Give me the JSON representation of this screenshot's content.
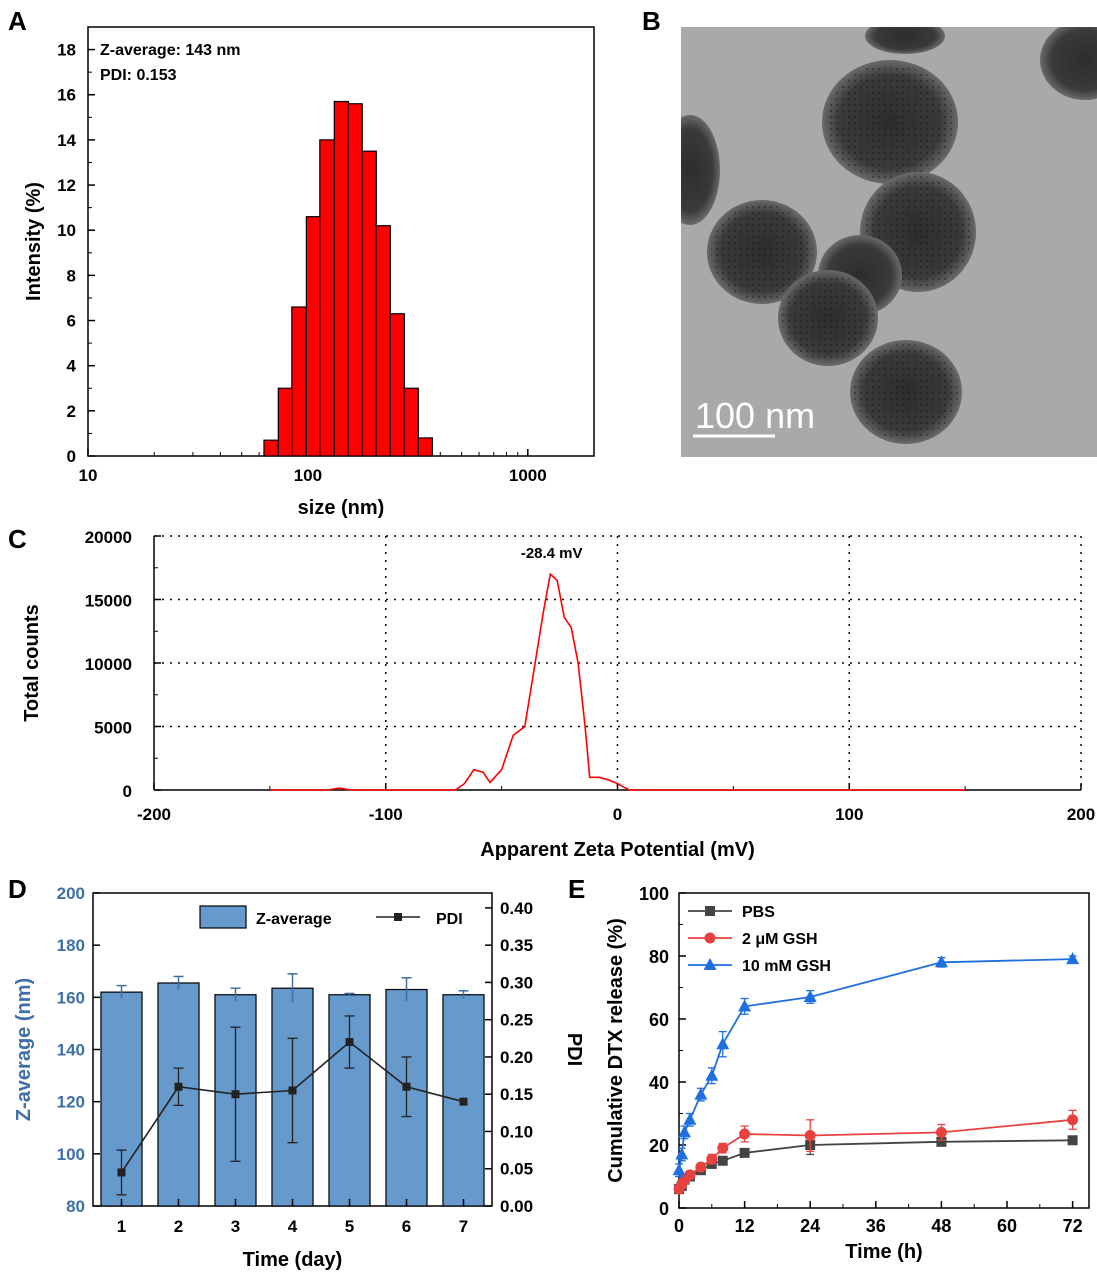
{
  "panels": {
    "a": "A",
    "b": "B",
    "c": "C",
    "d": "D",
    "e": "E"
  },
  "tem": {
    "scale_bar_label": "100 nm"
  },
  "chart_data": [
    {
      "panel": "A",
      "type": "bar",
      "xlabel": "size (nm)",
      "ylabel": "Intensity (%)",
      "xscale": "log",
      "xlim": [
        10,
        2000
      ],
      "ylim": [
        0,
        19
      ],
      "xticks": [
        10,
        100,
        1000
      ],
      "yticks": [
        0,
        2,
        4,
        6,
        8,
        10,
        12,
        14,
        16,
        18
      ],
      "annotations": [
        "Z-average: 143 nm",
        "PDI: 0.153"
      ],
      "bins": [
        {
          "size": 68,
          "value": 0.7
        },
        {
          "size": 79,
          "value": 3.0
        },
        {
          "size": 91,
          "value": 6.6
        },
        {
          "size": 106,
          "value": 10.6
        },
        {
          "size": 122,
          "value": 14.0
        },
        {
          "size": 142,
          "value": 15.7
        },
        {
          "size": 164,
          "value": 15.6
        },
        {
          "size": 190,
          "value": 13.5
        },
        {
          "size": 220,
          "value": 10.2
        },
        {
          "size": 255,
          "value": 6.3
        },
        {
          "size": 295,
          "value": 3.0
        },
        {
          "size": 342,
          "value": 0.8
        }
      ],
      "color": "#ff0000"
    },
    {
      "panel": "C",
      "type": "line",
      "xlabel": "Apparent Zeta Potential (mV)",
      "ylabel": "Total counts",
      "xlim": [
        -200,
        200
      ],
      "ylim": [
        0,
        20000
      ],
      "xticks": [
        -200,
        -100,
        0,
        100,
        200
      ],
      "yticks": [
        0,
        5000,
        10000,
        15000,
        20000
      ],
      "grid": true,
      "annotation": "-28.4 mV",
      "color": "#ff0000",
      "x": [
        -150,
        -125,
        -120,
        -115,
        -100,
        -70,
        -66,
        -62,
        -58,
        -55,
        -50,
        -45,
        -40,
        -36,
        -32,
        -29,
        -26,
        -23,
        -20,
        -17,
        -14,
        -12,
        -8,
        -4,
        0,
        5,
        10,
        50,
        100,
        150
      ],
      "y": [
        0,
        0,
        150,
        0,
        0,
        0,
        500,
        1600,
        1400,
        600,
        1600,
        4300,
        5000,
        9500,
        14000,
        17000,
        16500,
        13600,
        12800,
        10000,
        5000,
        1000,
        1000,
        800,
        500,
        0,
        0,
        0,
        0,
        0
      ]
    },
    {
      "panel": "D",
      "type": "bar+line",
      "xlabel": "Time (day)",
      "ylabel": "Z-average (nm)",
      "y2label": "PDI",
      "categories": [
        "1",
        "2",
        "3",
        "4",
        "5",
        "6",
        "7"
      ],
      "ylim": [
        80,
        200
      ],
      "y2lim": [
        0,
        0.42
      ],
      "yticks": [
        80,
        100,
        120,
        140,
        160,
        180,
        200
      ],
      "y2ticks": [
        0.0,
        0.05,
        0.1,
        0.15,
        0.2,
        0.25,
        0.3,
        0.35,
        0.4
      ],
      "legend_position": "top",
      "series": [
        {
          "name": "Z-average",
          "values": [
            162,
            165.5,
            161,
            163.5,
            161,
            163,
            161
          ],
          "errors": [
            2.5,
            2.5,
            2.5,
            5.5,
            0.5,
            4.5,
            1.5
          ],
          "color": "#6699cc"
        },
        {
          "name": "PDI",
          "values": [
            0.045,
            0.16,
            0.15,
            0.155,
            0.22,
            0.16,
            0.14
          ],
          "errors": [
            0.03,
            0.025,
            0.09,
            0.07,
            0.035,
            0.04,
            0.0
          ],
          "color": "#222222"
        }
      ]
    },
    {
      "panel": "E",
      "type": "line",
      "xlabel": "Time (h)",
      "ylabel": "Cumulative DTX release (%)",
      "xlim": [
        0,
        75
      ],
      "ylim": [
        0,
        100
      ],
      "xticks": [
        0,
        12,
        24,
        36,
        48,
        60,
        72
      ],
      "yticks": [
        0,
        20,
        40,
        60,
        80,
        100
      ],
      "legend_position": "top-left",
      "x": [
        0,
        0.5,
        1,
        2,
        4,
        6,
        8,
        12,
        24,
        48,
        72
      ],
      "series": [
        {
          "name": "PBS",
          "values": [
            6,
            7,
            9,
            10,
            12,
            14,
            15,
            17.5,
            20,
            21,
            21.5
          ],
          "errors": [
            1,
            1,
            1,
            1,
            1,
            1,
            1,
            1,
            3,
            1,
            1
          ],
          "color": "#444444",
          "marker": "square"
        },
        {
          "name": "2 μM GSH",
          "values": [
            6,
            7.5,
            9,
            10.5,
            13,
            15.5,
            19,
            23.5,
            23,
            24,
            28
          ],
          "errors": [
            1,
            1,
            1,
            1,
            1,
            1.5,
            1.5,
            2.5,
            5,
            2.5,
            3
          ],
          "color": "#e8423f",
          "marker": "circle"
        },
        {
          "name": "10 mM GSH",
          "values": [
            12,
            17,
            24,
            28,
            36,
            42,
            52,
            64,
            67,
            78,
            79
          ],
          "errors": [
            2,
            2,
            2,
            2,
            2,
            2.5,
            4,
            2.5,
            2,
            1.5,
            1
          ],
          "color": "#1f6fe0",
          "marker": "triangle"
        }
      ]
    }
  ]
}
